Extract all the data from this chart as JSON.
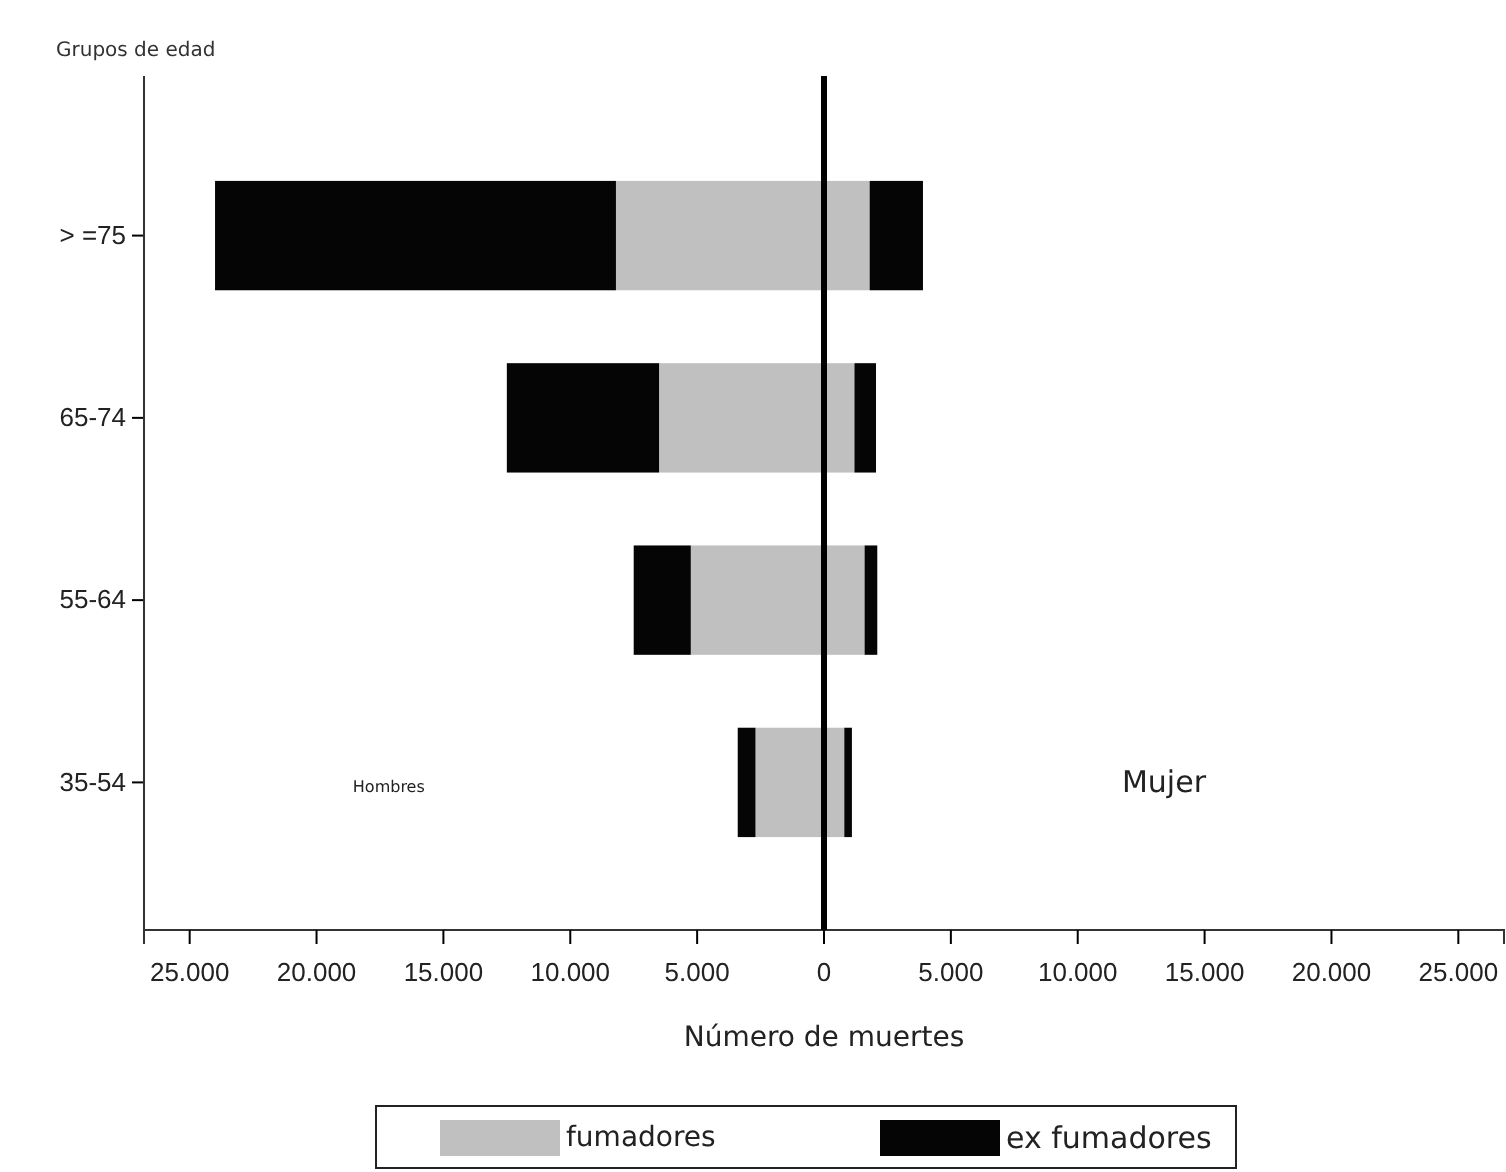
{
  "chart_data": {
    "type": "bar",
    "orientation": "horizontal",
    "stacked": true,
    "ylabel": "Grupos de edad",
    "xlabel": "Número de muertes",
    "categories": [
      "> =75",
      "65-74",
      "55-64",
      "35-54"
    ],
    "series": [
      {
        "name": "fumadores",
        "color": "#c0c0c0",
        "values": [
          -8200,
          -6500,
          -5250,
          -2700
        ]
      },
      {
        "name": "ex fumadores",
        "color": "#050505",
        "values": [
          -15800,
          -6000,
          -2250,
          -700
        ]
      },
      {
        "color": "#c0c0c0",
        "values": [
          1800,
          1200,
          1600,
          800
        ]
      },
      {
        "color": "#050505",
        "values": [
          2100,
          850,
          500,
          300
        ]
      }
    ],
    "xlim": [
      -26800,
      26800
    ],
    "xticks": [
      {
        "value": -25000,
        "label": "25.000"
      },
      {
        "value": -20000,
        "label": "20.000"
      },
      {
        "value": -15000,
        "label": "15.000"
      },
      {
        "value": -10000,
        "label": "10.000"
      },
      {
        "value": -5000,
        "label": "5.000"
      },
      0,
      {
        "value": 5000,
        "label": "5.000"
      },
      {
        "value": 10000,
        "label": "10.000"
      },
      {
        "value": 15000,
        "label": "15.000"
      },
      {
        "value": 20000,
        "label": "20.000"
      },
      {
        "value": 25000,
        "label": "25.000"
      }
    ],
    "ref_lines": [
      {
        "axis": "x",
        "value": 0,
        "color": "#000000"
      }
    ],
    "annotations": [
      "Hombres",
      "Mujer"
    ],
    "legend": "bottom",
    "grid": false
  }
}
